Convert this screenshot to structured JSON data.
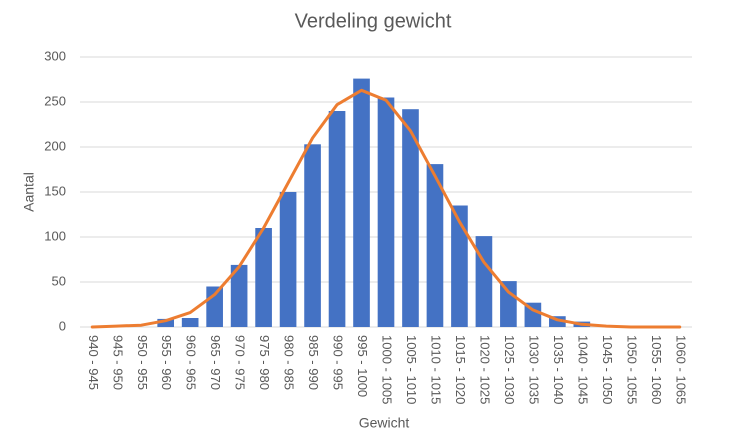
{
  "chart_data": {
    "type": "bar",
    "title": "Verdeling gewicht",
    "x_label": "Gewicht",
    "y_label": "Aantal",
    "categories": [
      "940 - 945",
      "945 - 950",
      "950 - 955",
      "955 - 960",
      "960 - 965",
      "965 - 970",
      "970 - 975",
      "975 - 980",
      "980 - 985",
      "985 - 990",
      "990 - 995",
      "995 - 1000",
      "1000 - 1005",
      "1005 - 1010",
      "1010 - 1015",
      "1015 - 1020",
      "1020 - 1025",
      "1025 - 1030",
      "1030 - 1035",
      "1035 - 1040",
      "1040 - 1045",
      "1045 - 1050",
      "1050 - 1055",
      "1055 - 1060",
      "1060 - 1065"
    ],
    "series": [
      {
        "type": "bar",
        "color": "#4472c4",
        "values": [
          0,
          0,
          0,
          9,
          10,
          45,
          69,
          110,
          150,
          203,
          240,
          276,
          255,
          242,
          181,
          135,
          101,
          51,
          27,
          12,
          6,
          0,
          0,
          0,
          0
        ]
      },
      {
        "type": "line",
        "color": "#ed7d31",
        "values": [
          0,
          1,
          2,
          7,
          16,
          36,
          67,
          110,
          160,
          210,
          247,
          263,
          252,
          218,
          168,
          117,
          72,
          39,
          19,
          8,
          3,
          1,
          0,
          0,
          0
        ]
      }
    ],
    "ylim": [
      0,
      300
    ],
    "yticks": [
      0,
      50,
      100,
      150,
      200,
      250,
      300
    ],
    "grid": true
  }
}
